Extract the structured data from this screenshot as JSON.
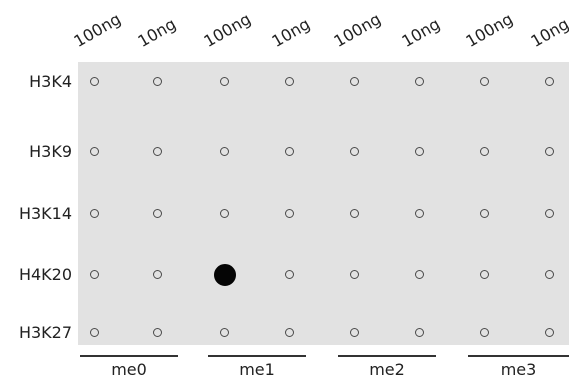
{
  "columns": [
    "100ng",
    "10ng",
    "100ng",
    "10ng",
    "100ng",
    "10ng",
    "100ng",
    "10ng"
  ],
  "rows": [
    "H3K4",
    "H3K9",
    "H3K14",
    "H4K20",
    "H3K27"
  ],
  "groups": [
    "me0",
    "me1",
    "me2",
    "me3"
  ],
  "strong_spots": [
    {
      "row": 3,
      "col": 2
    }
  ],
  "colors": {
    "membrane": "#e2e2e2",
    "dot_outline": "#4a4a4a",
    "strong_dot": "#050505"
  }
}
